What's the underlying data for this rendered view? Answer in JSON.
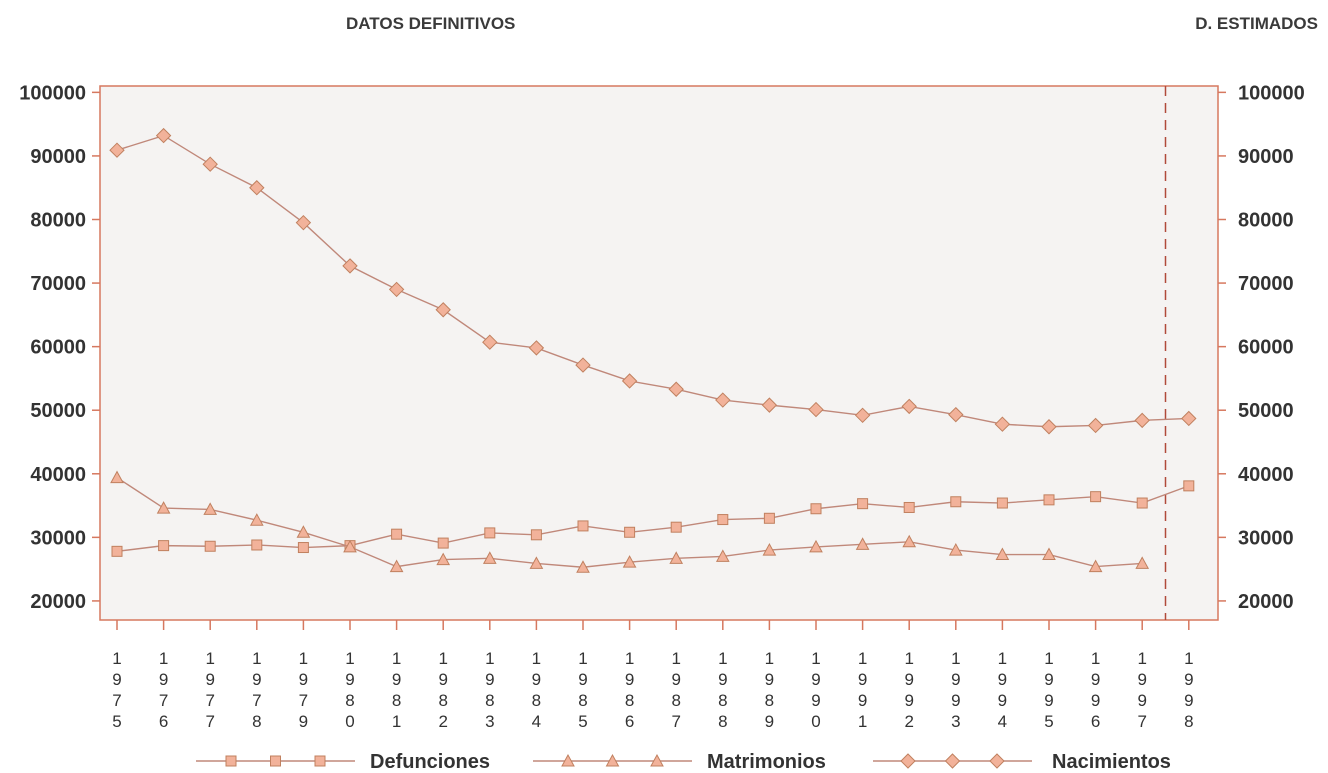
{
  "header": {
    "left_label": "DATOS DEFINITIVOS",
    "right_label": "D. ESTIMADOS"
  },
  "colors": {
    "line": "#c0887a",
    "marker_fill": "#f2b29a",
    "marker_stroke": "#c0805f",
    "plot_bg": "#f5f3f2",
    "axis": "#d6785f",
    "estimate_line": "#b04a3a"
  },
  "chart_data": {
    "type": "line",
    "title": "",
    "xlabel": "",
    "ylabel": "",
    "ylim": [
      17000,
      101000
    ],
    "yticks": [
      20000,
      30000,
      40000,
      50000,
      60000,
      70000,
      80000,
      90000,
      100000
    ],
    "grid": false,
    "legend_position": "bottom",
    "estimate_starts_after": "1997",
    "x": [
      "1975",
      "1976",
      "1977",
      "1978",
      "1979",
      "1980",
      "1981",
      "1982",
      "1983",
      "1984",
      "1985",
      "1986",
      "1987",
      "1988",
      "1989",
      "1990",
      "1991",
      "1992",
      "1993",
      "1994",
      "1995",
      "1996",
      "1997",
      "1998"
    ],
    "series": [
      {
        "name": "Defunciones",
        "marker": "square",
        "values": [
          27800,
          28700,
          28600,
          28800,
          28400,
          28700,
          30500,
          29100,
          30700,
          30400,
          31800,
          30800,
          31600,
          32800,
          33000,
          34500,
          35300,
          34700,
          35600,
          35400,
          35900,
          36400,
          35400,
          38100
        ]
      },
      {
        "name": "Matrimonios",
        "marker": "triangle",
        "values": [
          39400,
          34600,
          34400,
          32700,
          30800,
          28500,
          25400,
          26500,
          26700,
          25900,
          25300,
          26100,
          26700,
          27000,
          28000,
          28500,
          28900,
          29300,
          28000,
          27300,
          27300,
          25400,
          25900,
          null
        ]
      },
      {
        "name": "Nacimientos",
        "marker": "diamond",
        "values": [
          90900,
          93200,
          88700,
          85000,
          79500,
          72700,
          69000,
          65800,
          60700,
          59800,
          57100,
          54600,
          53300,
          51600,
          50800,
          50100,
          49200,
          50600,
          49300,
          47800,
          47400,
          47600,
          48400,
          48700
        ]
      }
    ]
  }
}
